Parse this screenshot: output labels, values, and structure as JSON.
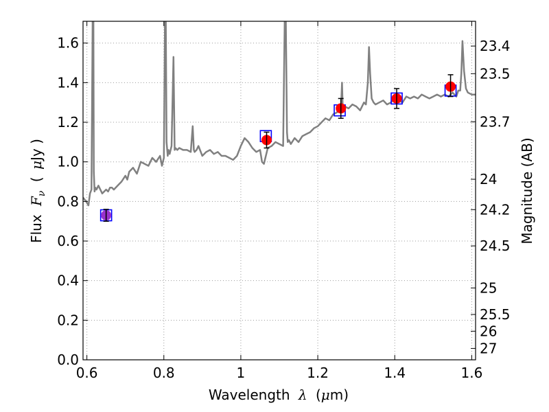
{
  "chart_data": {
    "type": "scatter",
    "title": "",
    "xlabel": {
      "prefix": "Wavelength",
      "symbol": "λ",
      "unit_open": "(",
      "unit_mu": "μ",
      "unit_rest": "m)"
    },
    "ylabel": {
      "prefix": "Flux",
      "symbol": "F",
      "subscript": "ν",
      "unit_open": "(",
      "unit_mu": "μ",
      "unit_rest": "Jy )"
    },
    "y2label": "Magnitude (AB)",
    "xlim": [
      0.59,
      1.61
    ],
    "ylim": [
      0.0,
      1.71
    ],
    "grid": true,
    "xticks": [
      {
        "v": 0.6,
        "label": "0.6"
      },
      {
        "v": 0.8,
        "label": "0.8"
      },
      {
        "v": 1.0,
        "label": "1"
      },
      {
        "v": 1.2,
        "label": "1.2"
      },
      {
        "v": 1.4,
        "label": "1.4"
      },
      {
        "v": 1.6,
        "label": "1.6"
      }
    ],
    "yticks": [
      {
        "v": 0.0,
        "label": "0.0"
      },
      {
        "v": 0.2,
        "label": "0.2"
      },
      {
        "v": 0.4,
        "label": "0.4"
      },
      {
        "v": 0.6,
        "label": "0.6"
      },
      {
        "v": 0.8,
        "label": "0.8"
      },
      {
        "v": 1.0,
        "label": "1.0"
      },
      {
        "v": 1.2,
        "label": "1.2"
      },
      {
        "v": 1.4,
        "label": "1.4"
      },
      {
        "v": 1.6,
        "label": "1.6"
      }
    ],
    "mag_ticks": [
      "23.4",
      "23.5",
      "23.7",
      "24",
      "24.2",
      "24.5",
      "25",
      "25.5",
      "26",
      "27"
    ],
    "colors": {
      "spectrum": "#808080",
      "model_box": "#0000ff",
      "obs_point": "#ff0000",
      "obs_point_first": "#9932cc",
      "errorbar": "#000000",
      "grid": "#999999"
    },
    "series": [
      {
        "kind": "spectrum",
        "x": [
          0.59,
          0.598,
          0.604,
          0.608,
          0.612,
          0.615,
          0.617,
          0.618,
          0.62,
          0.622,
          0.625,
          0.63,
          0.64,
          0.65,
          0.655,
          0.66,
          0.665,
          0.67,
          0.68,
          0.69,
          0.7,
          0.705,
          0.71,
          0.72,
          0.73,
          0.74,
          0.75,
          0.76,
          0.77,
          0.78,
          0.79,
          0.795,
          0.8,
          0.803,
          0.805,
          0.807,
          0.81,
          0.812,
          0.815,
          0.82,
          0.825,
          0.828,
          0.83,
          0.835,
          0.84,
          0.85,
          0.86,
          0.87,
          0.875,
          0.878,
          0.88,
          0.885,
          0.89,
          0.9,
          0.91,
          0.92,
          0.93,
          0.94,
          0.95,
          0.96,
          0.97,
          0.98,
          0.99,
          1.0,
          1.01,
          1.02,
          1.03,
          1.04,
          1.05,
          1.055,
          1.06,
          1.07,
          1.08,
          1.09,
          1.1,
          1.11,
          1.114,
          1.117,
          1.12,
          1.122,
          1.125,
          1.13,
          1.14,
          1.15,
          1.16,
          1.17,
          1.18,
          1.19,
          1.2,
          1.21,
          1.22,
          1.23,
          1.24,
          1.25,
          1.255,
          1.26,
          1.263,
          1.265,
          1.27,
          1.28,
          1.29,
          1.3,
          1.31,
          1.32,
          1.325,
          1.33,
          1.333,
          1.336,
          1.34,
          1.345,
          1.35,
          1.36,
          1.37,
          1.38,
          1.39,
          1.4,
          1.41,
          1.42,
          1.43,
          1.44,
          1.45,
          1.46,
          1.47,
          1.48,
          1.49,
          1.5,
          1.51,
          1.52,
          1.53,
          1.54,
          1.55,
          1.56,
          1.565,
          1.57,
          1.573,
          1.576,
          1.58,
          1.585,
          1.59,
          1.6,
          1.61
        ],
        "y": [
          0.82,
          0.8,
          0.78,
          0.84,
          0.86,
          1.72,
          1.72,
          0.95,
          0.85,
          0.87,
          0.86,
          0.88,
          0.84,
          0.86,
          0.85,
          0.87,
          0.87,
          0.86,
          0.88,
          0.9,
          0.93,
          0.91,
          0.95,
          0.97,
          0.94,
          1.0,
          0.99,
          0.98,
          1.02,
          1.0,
          1.03,
          0.98,
          1.02,
          1.72,
          1.72,
          1.1,
          1.03,
          1.06,
          1.04,
          1.08,
          1.53,
          1.06,
          1.07,
          1.06,
          1.07,
          1.06,
          1.06,
          1.05,
          1.18,
          1.06,
          1.05,
          1.06,
          1.08,
          1.03,
          1.05,
          1.06,
          1.04,
          1.05,
          1.03,
          1.03,
          1.02,
          1.01,
          1.03,
          1.08,
          1.12,
          1.1,
          1.07,
          1.05,
          1.06,
          1.0,
          0.99,
          1.07,
          1.08,
          1.1,
          1.09,
          1.08,
          1.72,
          1.72,
          1.15,
          1.1,
          1.11,
          1.09,
          1.12,
          1.1,
          1.13,
          1.14,
          1.15,
          1.17,
          1.18,
          1.2,
          1.22,
          1.21,
          1.24,
          1.25,
          1.27,
          1.25,
          1.4,
          1.26,
          1.28,
          1.27,
          1.29,
          1.28,
          1.26,
          1.3,
          1.29,
          1.4,
          1.58,
          1.45,
          1.32,
          1.3,
          1.29,
          1.3,
          1.31,
          1.29,
          1.3,
          1.32,
          1.31,
          1.3,
          1.33,
          1.32,
          1.33,
          1.32,
          1.34,
          1.33,
          1.32,
          1.33,
          1.34,
          1.33,
          1.34,
          1.33,
          1.35,
          1.33,
          1.36,
          1.36,
          1.45,
          1.61,
          1.46,
          1.37,
          1.35,
          1.34,
          1.34
        ]
      },
      {
        "kind": "model_box",
        "name": "",
        "x": [
          0.65,
          1.065,
          1.257,
          1.405,
          1.545
        ],
        "y": [
          0.73,
          1.13,
          1.26,
          1.32,
          1.36
        ]
      },
      {
        "kind": "observed",
        "name": "",
        "x": [
          0.65,
          1.067,
          1.26,
          1.405,
          1.545
        ],
        "y": [
          0.73,
          1.11,
          1.27,
          1.32,
          1.38
        ],
        "err_low": [
          0.03,
          0.04,
          0.05,
          0.05,
          0.05
        ],
        "err_high": [
          0.03,
          0.04,
          0.05,
          0.05,
          0.06
        ]
      }
    ]
  }
}
